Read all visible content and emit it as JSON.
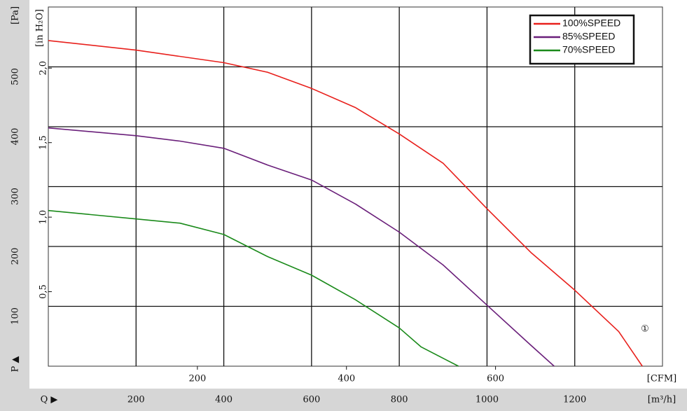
{
  "chart_data": {
    "type": "line",
    "x_label": "[m³/h]",
    "x_axis_symbol": "Q ▶",
    "y_label": "[Pa]",
    "y_axis_symbol": "P ▲",
    "x2_label": "[CFM]",
    "y2_label": "[in H₂O]",
    "annotation": "①",
    "xlim": [
      0,
      1400
    ],
    "ylim": [
      0,
      600
    ],
    "xticks": [
      200,
      400,
      600,
      800,
      1000,
      1200
    ],
    "yticks": [
      100,
      200,
      300,
      400,
      500
    ],
    "x2lim": [
      0,
      824
    ],
    "x2ticks": [
      200,
      400,
      600
    ],
    "y2lim": [
      0,
      2.41
    ],
    "y2ticks": [
      {
        "value": 0.5,
        "label": "0,5"
      },
      {
        "value": 1.0,
        "label": "1,0"
      },
      {
        "value": 1.5,
        "label": "1,5"
      },
      {
        "value": 2.0,
        "label": "2,0"
      }
    ],
    "grid": true,
    "legend": "top-right",
    "series": [
      {
        "name": "100%SPEED",
        "color": "#e8201c",
        "x": [
          0,
          200,
          400,
          500,
          600,
          700,
          800,
          900,
          1000,
          1100,
          1200,
          1300,
          1354
        ],
        "values": [
          544,
          528,
          507,
          491,
          464,
          432,
          388,
          339,
          263,
          190,
          127,
          58,
          0
        ]
      },
      {
        "name": "85%SPEED",
        "color": "#6a1f7a",
        "x": [
          0,
          200,
          300,
          400,
          500,
          600,
          700,
          800,
          900,
          1000,
          1100,
          1153
        ],
        "values": [
          398,
          385,
          376,
          364,
          336,
          311,
          271,
          224,
          169,
          102,
          35,
          0
        ]
      },
      {
        "name": "70%SPEED",
        "color": "#1a8a1a",
        "x": [
          0,
          200,
          300,
          400,
          500,
          600,
          700,
          800,
          850,
          935
        ],
        "values": [
          260,
          246,
          239,
          220,
          183,
          152,
          111,
          64,
          32,
          0
        ]
      }
    ]
  }
}
